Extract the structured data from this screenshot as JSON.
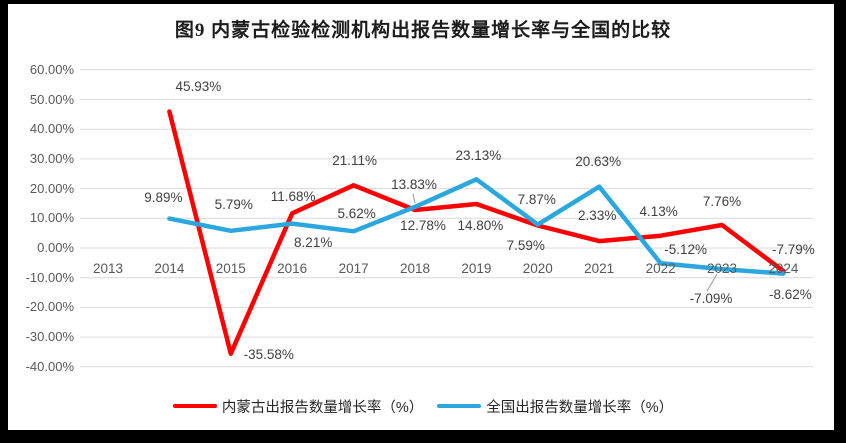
{
  "frame": {
    "border_color": "#000000",
    "background": "#FFFFFF"
  },
  "chart_data": {
    "type": "line",
    "title": "图9 内蒙古检验检测机构出报告数量增长率与全国的比较",
    "categories": [
      "2013",
      "2014",
      "2015",
      "2016",
      "2017",
      "2018",
      "2019",
      "2020",
      "2021",
      "2022",
      "2023",
      "2024"
    ],
    "ylim": [
      -40,
      60
    ],
    "ytick_step": 10,
    "ytick_labels": [
      "60.00%",
      "50.00%",
      "40.00%",
      "30.00%",
      "20.00%",
      "10.00%",
      "0.00%",
      "-10.00%",
      "-20.00%",
      "-30.00%",
      "-40.00%"
    ],
    "grid": "horizontal-only",
    "legend_position": "bottom",
    "series": [
      {
        "name": "内蒙古出报告数量增长率（%）",
        "color": "#FE0000",
        "values": [
          null,
          45.93,
          -35.58,
          11.68,
          21.11,
          12.78,
          14.8,
          7.59,
          2.33,
          4.13,
          7.76,
          -7.79
        ],
        "labels": [
          "",
          "45.93%",
          "-35.58%",
          "11.68%",
          "21.11%",
          "12.78%",
          "14.80%",
          "7.59%",
          "2.33%",
          "4.13%",
          "7.76%",
          "-7.79%"
        ],
        "label_offsets": [
          [
            0,
            0
          ],
          [
            29,
            -25
          ],
          [
            38,
            1
          ],
          [
            1,
            -16
          ],
          [
            1,
            -24
          ],
          [
            8,
            16
          ],
          [
            4,
            22
          ],
          [
            -12,
            21
          ],
          [
            -2,
            -25
          ],
          [
            -2,
            -24
          ],
          [
            0,
            -23
          ],
          [
            10,
            -21
          ]
        ]
      },
      {
        "name": "全国出报告数量增长率（%）",
        "color": "#2BA7DF",
        "values": [
          null,
          9.89,
          5.79,
          8.21,
          5.62,
          13.83,
          23.13,
          7.87,
          20.63,
          -5.12,
          -7.09,
          -8.62
        ],
        "labels": [
          "",
          "9.89%",
          "5.79%",
          "8.21%",
          "5.62%",
          "13.83%",
          "23.13%",
          "7.87%",
          "20.63%",
          "-5.12%",
          "-7.09%",
          "-8.62%"
        ],
        "label_offsets": [
          [
            0,
            0
          ],
          [
            -6,
            -21
          ],
          [
            3,
            -26
          ],
          [
            21,
            19
          ],
          [
            3,
            -17
          ],
          [
            -1,
            -22
          ],
          [
            2,
            -23
          ],
          [
            -1,
            -25
          ],
          [
            -1,
            -25
          ],
          [
            25,
            -13
          ],
          [
            -11,
            30
          ],
          [
            7,
            21
          ]
        ]
      }
    ],
    "leader_lines": [
      {
        "series": 1,
        "index": 5,
        "from": [
          0,
          -4
        ],
        "to": [
          -2,
          -13
        ]
      },
      {
        "series": 1,
        "index": 10,
        "from": [
          -5,
          5
        ],
        "to": [
          -15,
          22
        ]
      }
    ],
    "styles": {
      "grid_color": "#D9D9D9",
      "axis_text_color": "#595959",
      "label_text_color": "#404040",
      "leader_color": "#A6A6A6",
      "line_width": 4.5
    }
  }
}
